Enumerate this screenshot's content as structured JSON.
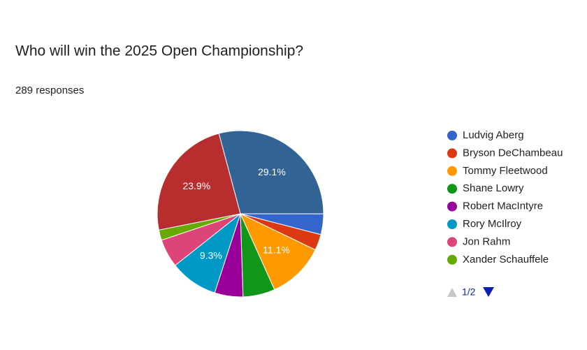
{
  "chart_data": {
    "type": "pie",
    "title": "Who will win the 2025 Open Championship?",
    "subtitle": "289 responses",
    "categories": [
      null,
      "Ludvig Aberg",
      "Bryson DeChambeau",
      "Tommy Fleetwood",
      "Shane Lowry",
      "Robert MacIntyre",
      "Rory McIlroy",
      "Jon Rahm",
      "Xander Schauffele",
      null
    ],
    "values": [
      29.1,
      4.0,
      3.1,
      11.1,
      6.2,
      5.5,
      9.3,
      5.5,
      2.0,
      23.9
    ],
    "value_labels": [
      "29.1%",
      null,
      null,
      "11.1%",
      null,
      null,
      "9.3%",
      null,
      null,
      "23.9%"
    ],
    "colors": [
      "#316395",
      "#3366cc",
      "#dc3912",
      "#ff9900",
      "#109618",
      "#990099",
      "#0099c6",
      "#dd4477",
      "#66aa00",
      "#b82e2e"
    ],
    "legend_page": "1/2"
  }
}
